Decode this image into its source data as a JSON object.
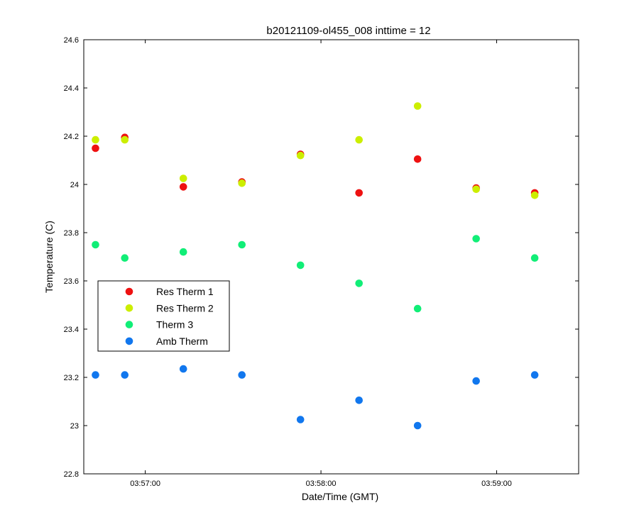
{
  "chart_data": {
    "type": "scatter",
    "title": "b20121109-ol455_008 inttime = 12",
    "xlabel": "Date/Time (GMT)",
    "ylabel": "Temperature (C)",
    "x_axis_type": "time",
    "xlim": [
      "03:56:39",
      "03:59:28"
    ],
    "ylim": [
      22.8,
      24.6
    ],
    "x_ticks": [
      "03:57:00",
      "03:58:00",
      "03:59:00"
    ],
    "y_ticks": [
      "22.8",
      "23",
      "23.2",
      "23.4",
      "23.6",
      "23.8",
      "24",
      "24.2",
      "24.4",
      "24.6"
    ],
    "grid": false,
    "legend_position": "center-left",
    "x": [
      "03:56:43",
      "03:56:53",
      "03:57:13",
      "03:57:33",
      "03:57:53",
      "03:58:13",
      "03:58:33",
      "03:58:53",
      "03:59:13"
    ],
    "series": [
      {
        "name": "Res Therm 1",
        "color": "#ee1111",
        "values": [
          24.15,
          24.195,
          23.99,
          24.01,
          24.125,
          23.965,
          24.105,
          23.985,
          23.965
        ]
      },
      {
        "name": "Res Therm 2",
        "color": "#ccee00",
        "values": [
          24.185,
          24.185,
          24.025,
          24.005,
          24.12,
          24.185,
          24.325,
          23.98,
          23.955
        ]
      },
      {
        "name": "Therm 3",
        "color": "#11ee77",
        "values": [
          23.75,
          23.695,
          23.72,
          23.75,
          23.665,
          23.59,
          23.485,
          23.775,
          23.695
        ]
      },
      {
        "name": "Amb Therm",
        "color": "#1177ee",
        "values": [
          23.21,
          23.21,
          23.235,
          23.21,
          23.025,
          23.105,
          23.0,
          23.185,
          23.21
        ]
      }
    ]
  }
}
